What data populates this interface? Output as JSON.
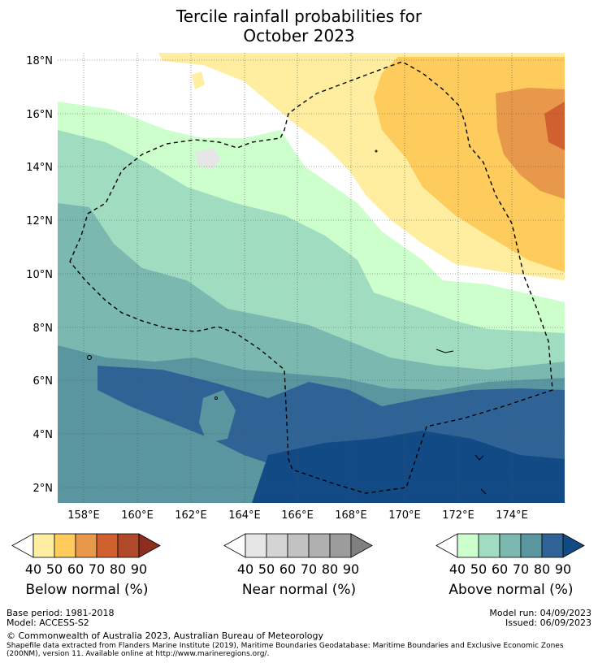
{
  "title": {
    "line1": "Tercile rainfall probabilities for",
    "line2": "October 2023"
  },
  "map": {
    "lat_labels": [
      "18°N",
      "16°N",
      "14°N",
      "12°N",
      "10°N",
      "8°N",
      "6°N",
      "4°N",
      "2°N"
    ],
    "lon_labels": [
      "158°E",
      "160°E",
      "162°E",
      "164°E",
      "166°E",
      "168°E",
      "170°E",
      "172°E",
      "174°E"
    ]
  },
  "colorbars": [
    {
      "name": "Below normal (%)",
      "ticks": [
        "40",
        "50",
        "60",
        "70",
        "80",
        "90"
      ],
      "colors": [
        "#ffffff",
        "#ffeda0",
        "#fecc5c",
        "#e8984a",
        "#d06030",
        "#b0482a",
        "#8c2d1e"
      ]
    },
    {
      "name": "Near normal (%)",
      "ticks": [
        "40",
        "50",
        "60",
        "70",
        "80",
        "90"
      ],
      "colors": [
        "#ffffff",
        "#e6e6e6",
        "#d4d4d4",
        "#c2c2c2",
        "#b0b0b0",
        "#9c9c9c",
        "#808080"
      ]
    },
    {
      "name": "Above normal (%)",
      "ticks": [
        "40",
        "50",
        "60",
        "70",
        "80",
        "90"
      ],
      "colors": [
        "#ffffff",
        "#ccffcc",
        "#a0dcc0",
        "#7ab8b0",
        "#5a96a0",
        "#2f6396",
        "#124a85"
      ]
    }
  ],
  "footer": {
    "base_period": "Base period: 1981-2018",
    "model": "Model: ACCESS-S2",
    "model_run": "Model run: 04/09/2023",
    "issued": "Issued: 06/09/2023",
    "copyright": "© Commonwealth of Australia 2023, Australian Bureau of Meteorology",
    "shapefile": "Shapefile data extracted from Flanders Marine Institute (2019), Maritime Boundaries Geodatabase: Maritime Boundaries and Exclusive Economic Zones",
    "shapefile2": "(200NM), version 11. Available online at http://www.marineregions.org/."
  }
}
